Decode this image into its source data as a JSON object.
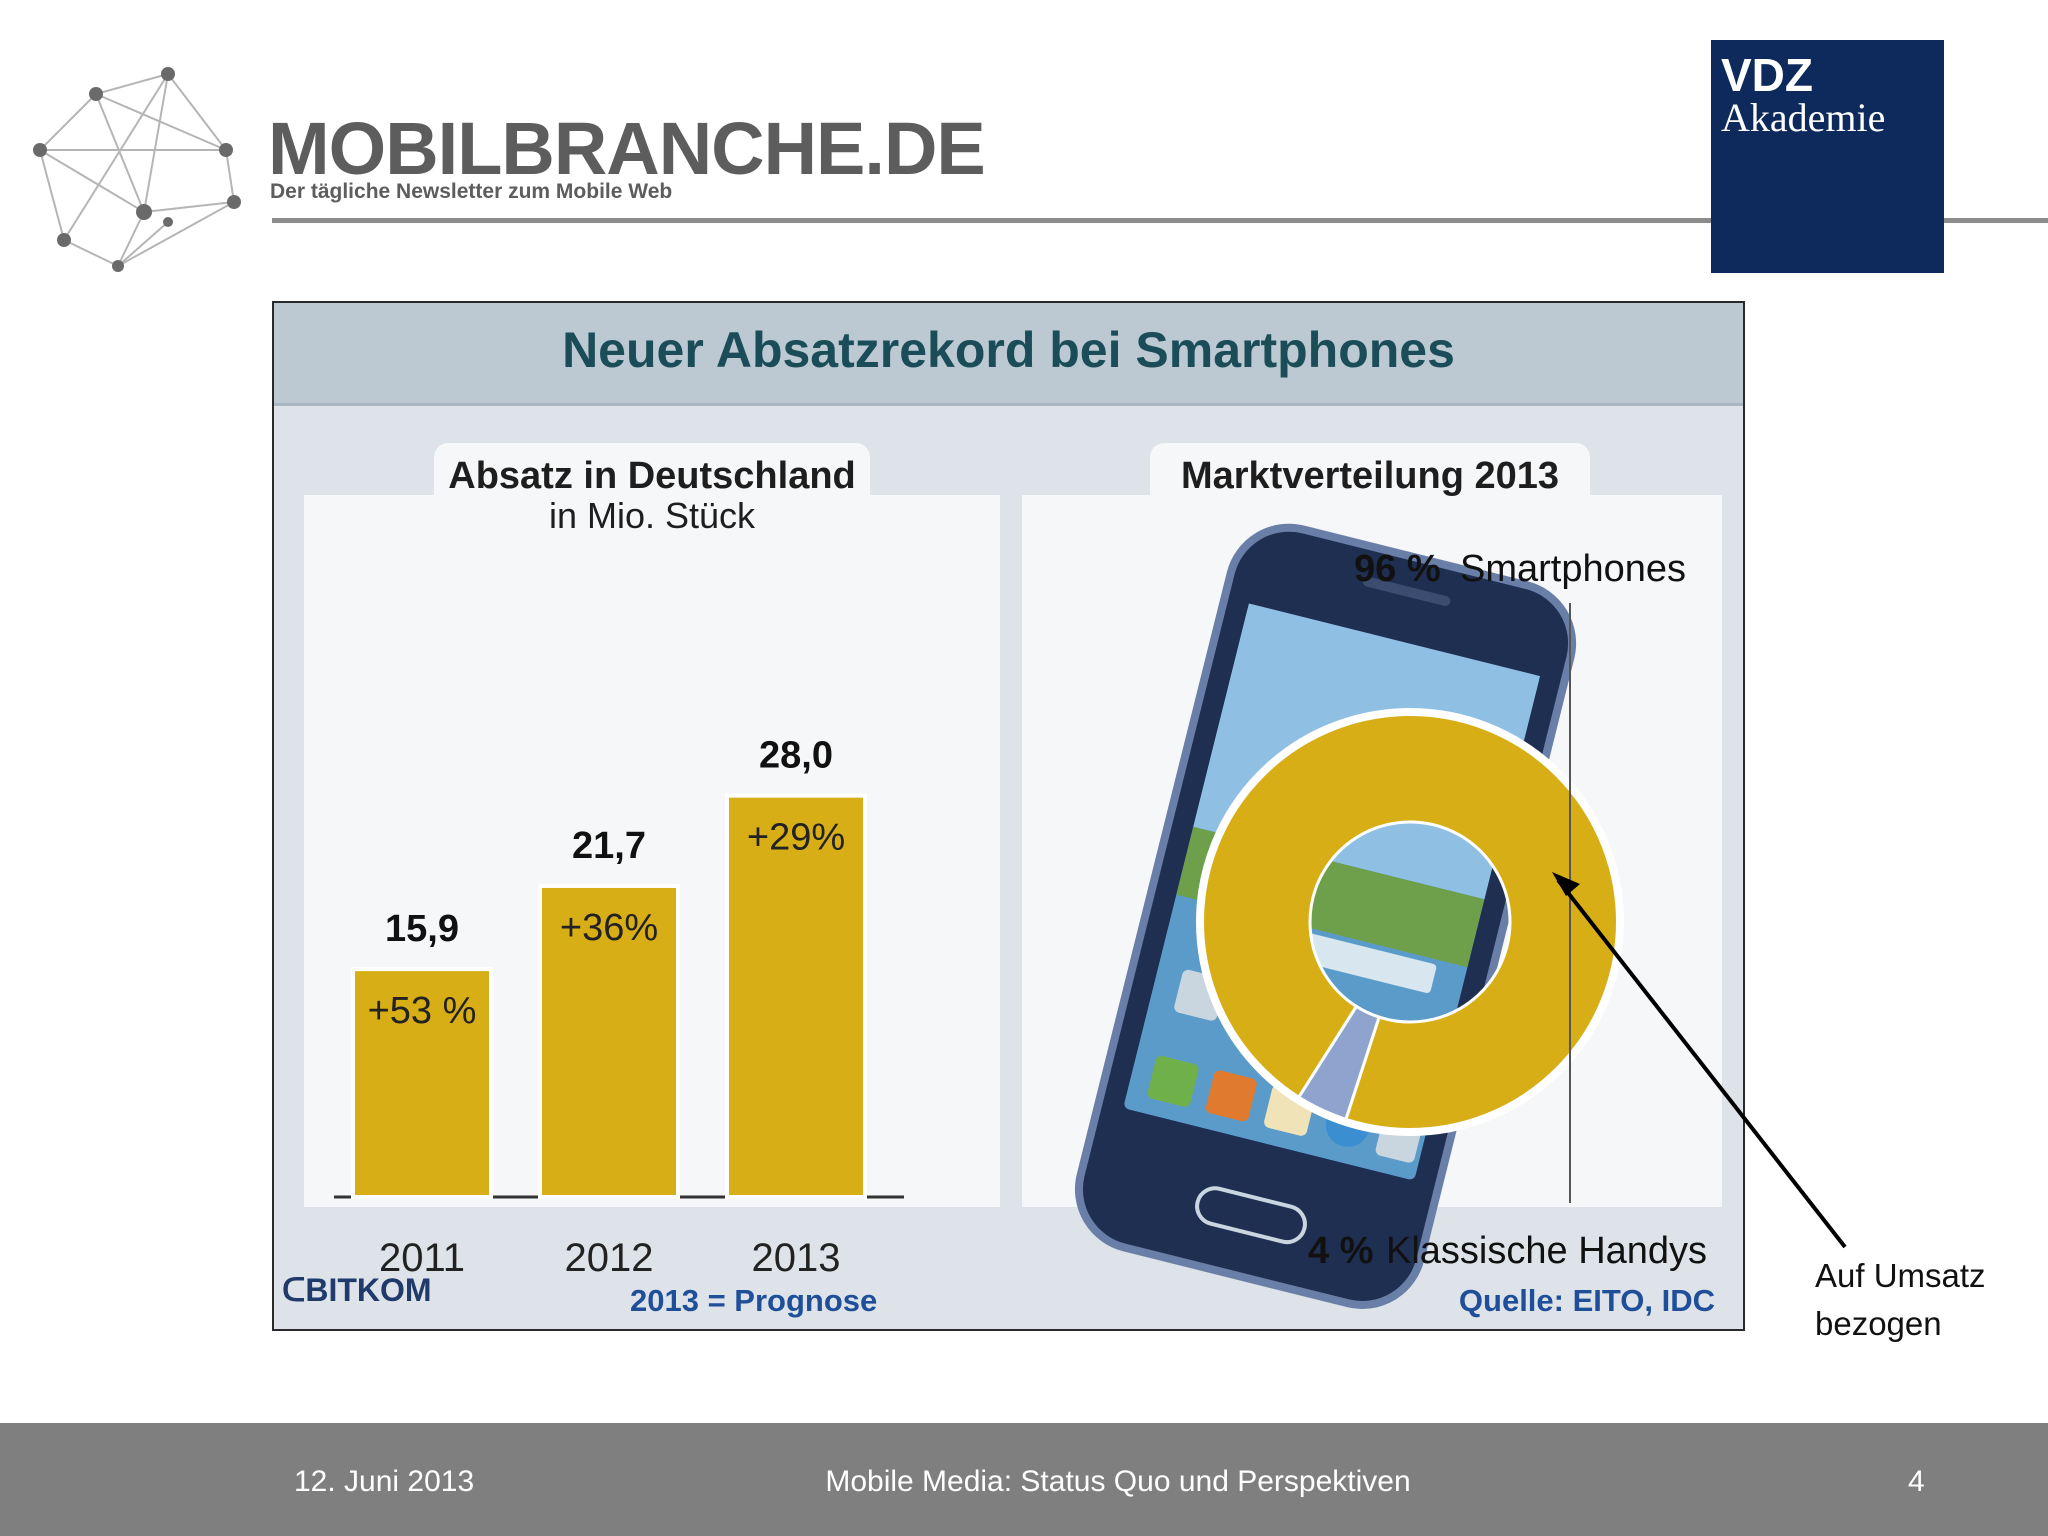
{
  "header": {
    "brand_title": "MOBILBRANCHE.DE",
    "brand_tagline": "Der tägliche Newsletter zum Mobile Web",
    "vdz_line1": "VDZ",
    "vdz_line2": "Akademie"
  },
  "graphic": {
    "title": "Neuer Absatzrekord bei Smartphones",
    "left_panel_title": "Absatz in Deutschland",
    "left_panel_subtitle": "in Mio. Stück",
    "right_panel_title": "Marktverteilung 2013",
    "bitkom_logo": "BITKOM",
    "footnote_left": "2013 = Prognose",
    "footnote_right": "Quelle: EITO, IDC"
  },
  "annotation": {
    "line1": "Auf Umsatz",
    "line2": "bezogen"
  },
  "colors": {
    "bar": "#d8ae17",
    "donut_main": "#d8ae17",
    "donut_small": "#8fa3cf",
    "title_text": "#1a4d57"
  },
  "chart_data": [
    {
      "type": "bar",
      "title": "Absatz in Deutschland",
      "subtitle": "in Mio. Stück",
      "categories": [
        "2011",
        "2012",
        "2013"
      ],
      "values": [
        15.9,
        21.7,
        28.0
      ],
      "value_labels": [
        "15,9",
        "21,7",
        "28,0"
      ],
      "growth_labels": [
        "+53 %",
        "+36%",
        "+29%"
      ],
      "ylim": [
        0,
        30
      ],
      "grid": false
    },
    {
      "type": "pie",
      "title": "Marktverteilung 2013",
      "slices": [
        {
          "name": "Smartphones",
          "value": 96,
          "label_pct": "96 %",
          "label_name": "Smartphones"
        },
        {
          "name": "Klassische Handys",
          "value": 4,
          "label_pct": "4 %",
          "label_name": "Klassische Handys"
        }
      ]
    }
  ],
  "slide_footer": {
    "date": "12. Juni 2013",
    "title": "Mobile Media: Status Quo und Perspektiven",
    "page": "4"
  }
}
